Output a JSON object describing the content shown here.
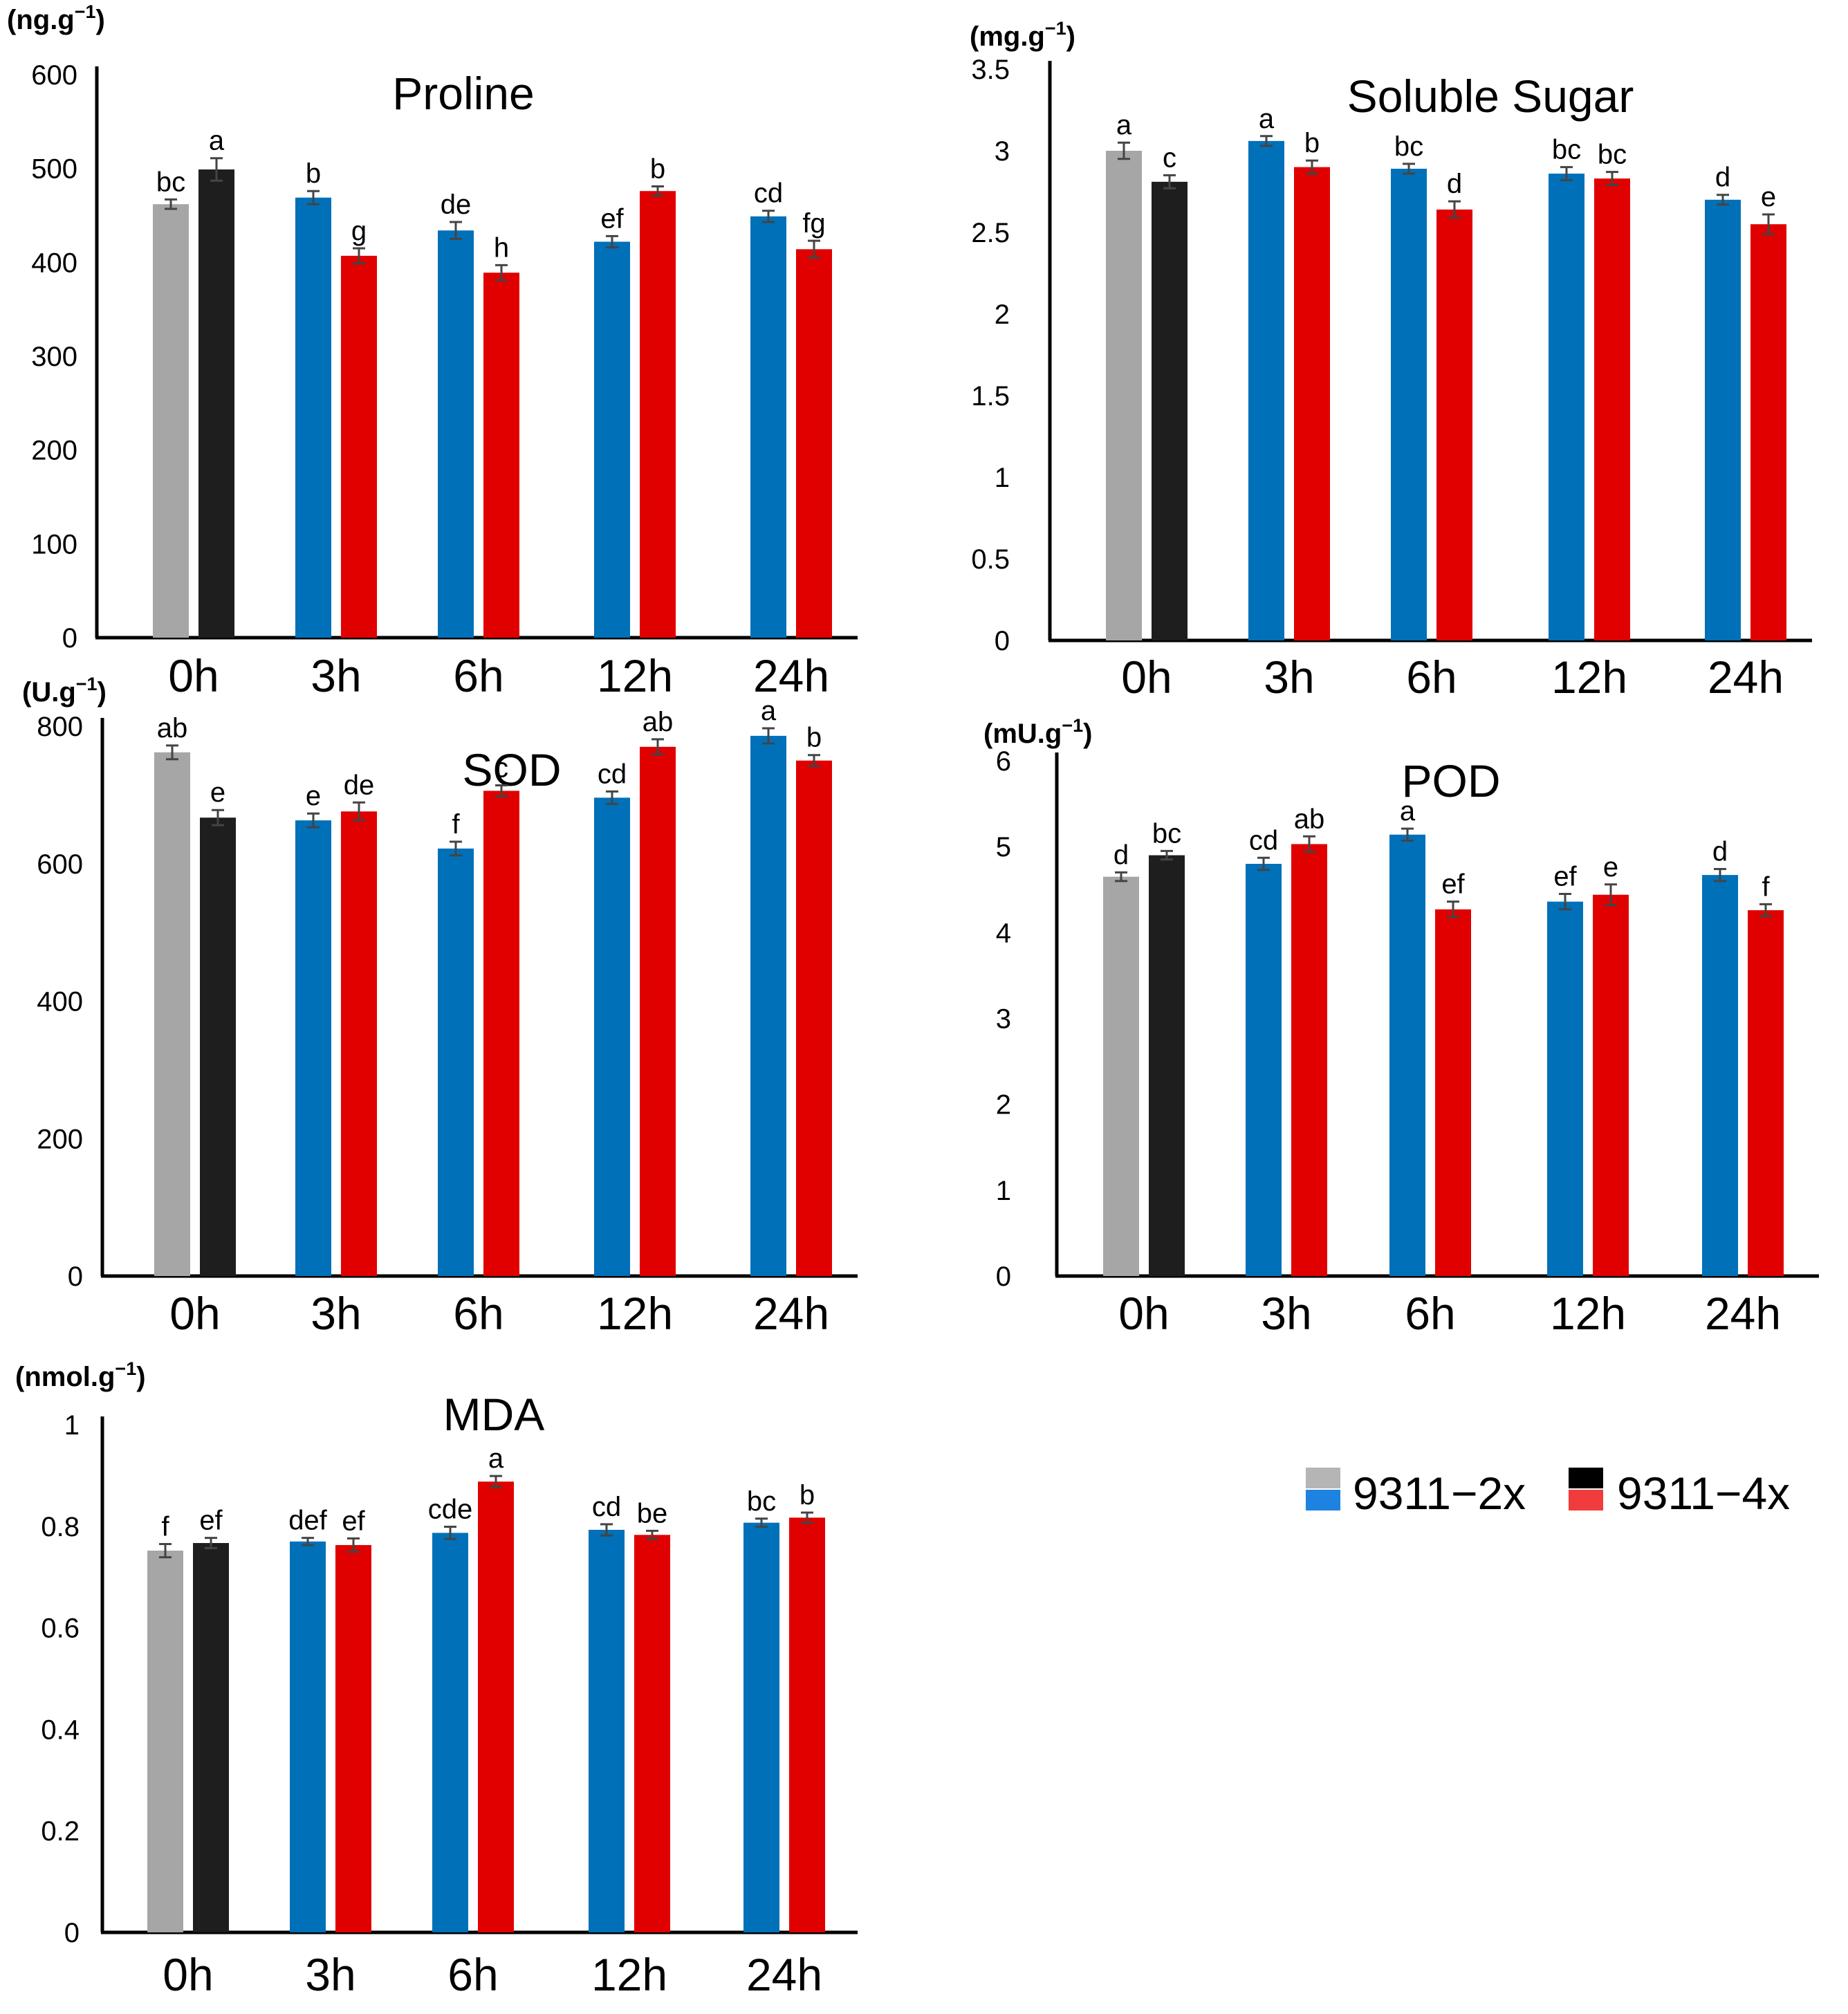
{
  "colors": {
    "2x_control": "#a6a6a6",
    "4x_control": "#1e1e1e",
    "2x_treatment": "#0070b8",
    "4x_treatment": "#e00000"
  },
  "legend": {
    "label_2x": "9311−2x",
    "label_4x": "9311−4x",
    "swatch_2x_top": "#b5b5b5",
    "swatch_2x_bottom": "#1e82e0",
    "swatch_4x_top": "#000000",
    "swatch_4x_bottom": "#f03c3c"
  },
  "chart_data": [
    {
      "id": "proline",
      "type": "bar",
      "title": "Proline",
      "ylabel": "(ng.g",
      "ylabel_sup": "−1",
      "ylabel_close": ")",
      "ylim": [
        0,
        600
      ],
      "yticks": [
        "0",
        "100",
        "200",
        "300",
        "400",
        "500",
        "600"
      ],
      "ytick_values": [
        0,
        100,
        200,
        300,
        400,
        500,
        600
      ],
      "categories": [
        "0h",
        "3h",
        "6h",
        "12h",
        "24h"
      ],
      "series": [
        {
          "name": "9311−2x",
          "values": [
            462,
            469,
            434,
            422,
            449
          ],
          "errors": [
            5,
            7,
            9,
            6,
            6
          ],
          "letters": [
            "bc",
            "b",
            "de",
            "ef",
            "cd"
          ]
        },
        {
          "name": "9311−4x",
          "values": [
            499,
            407,
            389,
            476,
            414
          ],
          "errors": [
            12,
            8,
            8,
            5,
            9
          ],
          "letters": [
            "a",
            "g",
            "h",
            "b",
            "fg"
          ]
        }
      ]
    },
    {
      "id": "soluble-sugar",
      "type": "bar",
      "title": "Soluble  Sugar",
      "ylabel": "(mg.g",
      "ylabel_sup": "−1",
      "ylabel_close": ")",
      "ylim": [
        0,
        3.5
      ],
      "yticks": [
        "0",
        "0.5",
        "1",
        "1.5",
        "2",
        "2.5",
        "3",
        "3.5"
      ],
      "ytick_values": [
        0,
        0.5,
        1,
        1.5,
        2,
        2.5,
        3,
        3.5
      ],
      "categories": [
        "0h",
        "3h",
        "6h",
        "12h",
        "24h"
      ],
      "series": [
        {
          "name": "9311−2x",
          "values": [
            3.0,
            3.06,
            2.89,
            2.86,
            2.7
          ],
          "errors": [
            0.05,
            0.03,
            0.03,
            0.04,
            0.03
          ],
          "letters": [
            "a",
            "a",
            "bc",
            "bc",
            "d"
          ]
        },
        {
          "name": "9311−4x",
          "values": [
            2.81,
            2.9,
            2.64,
            2.83,
            2.55
          ],
          "errors": [
            0.04,
            0.04,
            0.05,
            0.04,
            0.06
          ],
          "letters": [
            "c",
            "b",
            "d",
            "bc",
            "e"
          ]
        }
      ]
    },
    {
      "id": "sod",
      "type": "bar",
      "title": "SOD",
      "ylabel": "(U.g",
      "ylabel_sup": "−1",
      "ylabel_close": ")",
      "ylim": [
        0,
        800
      ],
      "yticks": [
        "0",
        "200",
        "400",
        "600",
        "800"
      ],
      "ytick_values": [
        0,
        200,
        400,
        600,
        800
      ],
      "categories": [
        "0h",
        "3h",
        "6h",
        "12h",
        "24h"
      ],
      "series": [
        {
          "name": "9311−2x",
          "values": [
            762,
            663,
            622,
            696,
            786
          ],
          "errors": [
            10,
            10,
            10,
            9,
            11
          ],
          "letters": [
            "ab",
            "e",
            "f",
            "cd",
            "a"
          ]
        },
        {
          "name": "9311−4x",
          "values": [
            667,
            676,
            706,
            770,
            750
          ],
          "errors": [
            11,
            13,
            8,
            11,
            8
          ],
          "letters": [
            "e",
            "de",
            "c",
            "ab",
            "b"
          ]
        }
      ]
    },
    {
      "id": "pod",
      "type": "bar",
      "title": "POD",
      "ylabel": "(mU.g",
      "ylabel_sup": "−1",
      "ylabel_close": ")",
      "ylim": [
        0,
        6
      ],
      "yticks": [
        "0",
        "1",
        "2",
        "3",
        "4",
        "5",
        "6"
      ],
      "ytick_values": [
        0,
        1,
        2,
        3,
        4,
        5,
        6
      ],
      "categories": [
        "0h",
        "3h",
        "6h",
        "12h",
        "24h"
      ],
      "series": [
        {
          "name": "9311−2x",
          "values": [
            4.65,
            4.8,
            5.14,
            4.36,
            4.67
          ],
          "errors": [
            0.05,
            0.07,
            0.07,
            0.09,
            0.07
          ],
          "letters": [
            "d",
            "cd",
            "a",
            "ef",
            "d"
          ]
        },
        {
          "name": "9311−4x",
          "values": [
            4.9,
            5.03,
            4.27,
            4.44,
            4.26
          ],
          "errors": [
            0.05,
            0.09,
            0.09,
            0.12,
            0.07
          ],
          "letters": [
            "bc",
            "ab",
            "ef",
            "e",
            "f"
          ]
        }
      ]
    },
    {
      "id": "mda",
      "type": "bar",
      "title": "MDA",
      "ylabel": "(nmol.g",
      "ylabel_sup": "−1",
      "ylabel_close": ")",
      "ylim": [
        0,
        1
      ],
      "yticks": [
        "0",
        "0.2",
        "0.4",
        "0.6",
        "0.8",
        "1"
      ],
      "ytick_values": [
        0,
        0.2,
        0.4,
        0.6,
        0.8,
        1
      ],
      "categories": [
        "0h",
        "3h",
        "6h",
        "12h",
        "24h"
      ],
      "series": [
        {
          "name": "9311−2x",
          "values": [
            0.752,
            0.77,
            0.787,
            0.793,
            0.807
          ],
          "errors": [
            0.013,
            0.007,
            0.012,
            0.011,
            0.008
          ],
          "letters": [
            "f",
            "def",
            "cde",
            "cd",
            "bc"
          ]
        },
        {
          "name": "9311−4x",
          "values": [
            0.767,
            0.763,
            0.888,
            0.783,
            0.817
          ],
          "errors": [
            0.01,
            0.013,
            0.011,
            0.008,
            0.01
          ],
          "letters": [
            "ef",
            "ef",
            "a",
            "be",
            "b"
          ]
        }
      ]
    }
  ]
}
